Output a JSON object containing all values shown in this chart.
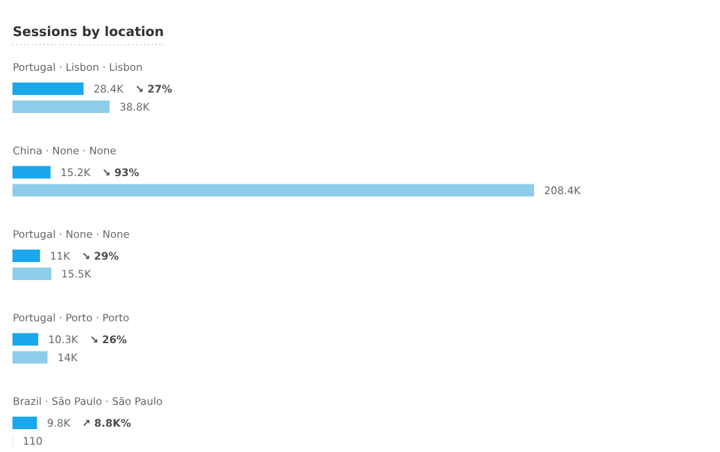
{
  "chart_data": {
    "type": "bar",
    "orientation": "horizontal",
    "title": "Sessions by location",
    "categories": [
      "Portugal · Lisbon · Lisbon",
      "China · None · None",
      "Portugal · None · None",
      "Portugal · Porto · Porto",
      "Brazil · São Paulo · São Paulo"
    ],
    "series": [
      {
        "color": "#1aa7ec",
        "values": [
          28400,
          15200,
          11000,
          10300,
          9800
        ],
        "value_labels": [
          "28.4K",
          "15.2K",
          "11K",
          "10.3K",
          "9.8K"
        ]
      },
      {
        "color": "#8ecdea",
        "values": [
          38800,
          208400,
          15500,
          14000,
          110
        ],
        "value_labels": [
          "38.8K",
          "208.4K",
          "15.5K",
          "14K",
          "110"
        ]
      }
    ],
    "annotations": [
      "↘ 27%",
      "↘ 93%",
      "↘ 29%",
      "↘ 26%",
      "↗ 8.8K%"
    ]
  }
}
